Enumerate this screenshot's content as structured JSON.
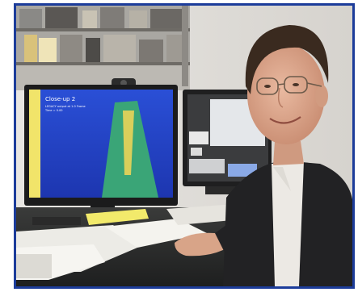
{
  "photo": {
    "frame_color": "#1c3c9a",
    "monitor": {
      "title": "Close-up 2",
      "caption_line1": "LEGACY output at 1.0 Frame",
      "caption_line2": "Time =   0.00"
    }
  }
}
